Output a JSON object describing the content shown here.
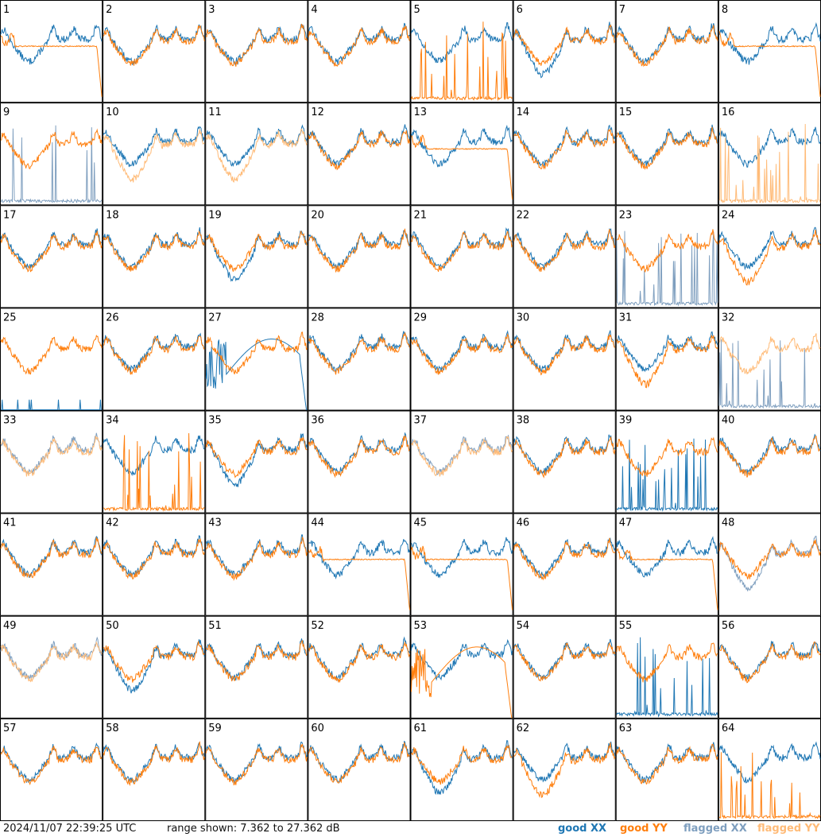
{
  "footer": {
    "timestamp": "2024/11/07 22:39:25 UTC",
    "range_text": "range shown: 7.362 to 27.362 dB",
    "legend": [
      "good XX",
      "good YY",
      "flagged XX",
      "flagged YY"
    ]
  },
  "colors": {
    "good_xx": "#1f77b4",
    "good_yy": "#ff7f0e",
    "flagged_xx": "#7f9fbf",
    "flagged_yy": "#ffbb78",
    "frame": "#000000"
  },
  "chart_data": {
    "type": "line",
    "title": "",
    "grid_rows": 8,
    "grid_cols": 8,
    "range_db": [
      7.362,
      27.362
    ],
    "series": [
      "good XX",
      "good YY",
      "flagged XX",
      "flagged YY"
    ],
    "panels": [
      {
        "label": "1",
        "xx": "good",
        "yy": "good",
        "anomaly": "yy_sag"
      },
      {
        "label": "2",
        "xx": "good",
        "yy": "good",
        "anomaly": "none"
      },
      {
        "label": "3",
        "xx": "good",
        "yy": "good",
        "anomaly": "none"
      },
      {
        "label": "4",
        "xx": "good",
        "yy": "good",
        "anomaly": "none"
      },
      {
        "label": "5",
        "xx": "good",
        "yy": "good",
        "anomaly": "yy_spikes"
      },
      {
        "label": "6",
        "xx": "good",
        "yy": "good",
        "anomaly": "xx_low"
      },
      {
        "label": "7",
        "xx": "good",
        "yy": "good",
        "anomaly": "none"
      },
      {
        "label": "8",
        "xx": "good",
        "yy": "good",
        "anomaly": "yy_sag"
      },
      {
        "label": "9",
        "xx": "flagged",
        "yy": "good",
        "anomaly": "xx_spikes"
      },
      {
        "label": "10",
        "xx": "good",
        "yy": "flagged",
        "anomaly": "yy_low"
      },
      {
        "label": "11",
        "xx": "good",
        "yy": "flagged",
        "anomaly": "yy_low"
      },
      {
        "label": "12",
        "xx": "good",
        "yy": "good",
        "anomaly": "none"
      },
      {
        "label": "13",
        "xx": "good",
        "yy": "good",
        "anomaly": "yy_sag"
      },
      {
        "label": "14",
        "xx": "good",
        "yy": "good",
        "anomaly": "none"
      },
      {
        "label": "15",
        "xx": "good",
        "yy": "good",
        "anomaly": "none"
      },
      {
        "label": "16",
        "xx": "good",
        "yy": "flagged",
        "anomaly": "yy_spikes"
      },
      {
        "label": "17",
        "xx": "good",
        "yy": "good",
        "anomaly": "none"
      },
      {
        "label": "18",
        "xx": "good",
        "yy": "good",
        "anomaly": "none"
      },
      {
        "label": "19",
        "xx": "good",
        "yy": "good",
        "anomaly": "xx_low"
      },
      {
        "label": "20",
        "xx": "good",
        "yy": "good",
        "anomaly": "none"
      },
      {
        "label": "21",
        "xx": "good",
        "yy": "good",
        "anomaly": "none"
      },
      {
        "label": "22",
        "xx": "good",
        "yy": "good",
        "anomaly": "none"
      },
      {
        "label": "23",
        "xx": "flagged",
        "yy": "good",
        "anomaly": "xx_spikes"
      },
      {
        "label": "24",
        "xx": "good",
        "yy": "good",
        "anomaly": "yy_low"
      },
      {
        "label": "25",
        "xx": "good",
        "yy": "good",
        "anomaly": "xx_gone"
      },
      {
        "label": "26",
        "xx": "good",
        "yy": "good",
        "anomaly": "none"
      },
      {
        "label": "27",
        "xx": "good",
        "yy": "good",
        "anomaly": "xx_dip"
      },
      {
        "label": "28",
        "xx": "good",
        "yy": "good",
        "anomaly": "none"
      },
      {
        "label": "29",
        "xx": "good",
        "yy": "good",
        "anomaly": "none"
      },
      {
        "label": "30",
        "xx": "good",
        "yy": "good",
        "anomaly": "none"
      },
      {
        "label": "31",
        "xx": "good",
        "yy": "good",
        "anomaly": "yy_low"
      },
      {
        "label": "32",
        "xx": "flagged",
        "yy": "flagged",
        "anomaly": "xx_spikes"
      },
      {
        "label": "33",
        "xx": "flagged",
        "yy": "flagged",
        "anomaly": "none"
      },
      {
        "label": "34",
        "xx": "good",
        "yy": "good",
        "anomaly": "yy_spikes"
      },
      {
        "label": "35",
        "xx": "good",
        "yy": "good",
        "anomaly": "xx_low"
      },
      {
        "label": "36",
        "xx": "good",
        "yy": "good",
        "anomaly": "none"
      },
      {
        "label": "37",
        "xx": "flagged",
        "yy": "flagged",
        "anomaly": "none"
      },
      {
        "label": "38",
        "xx": "good",
        "yy": "good",
        "anomaly": "none"
      },
      {
        "label": "39",
        "xx": "good",
        "yy": "good",
        "anomaly": "xx_spikes"
      },
      {
        "label": "40",
        "xx": "good",
        "yy": "good",
        "anomaly": "none"
      },
      {
        "label": "41",
        "xx": "good",
        "yy": "good",
        "anomaly": "none"
      },
      {
        "label": "42",
        "xx": "good",
        "yy": "good",
        "anomaly": "none"
      },
      {
        "label": "43",
        "xx": "good",
        "yy": "good",
        "anomaly": "none"
      },
      {
        "label": "44",
        "xx": "good",
        "yy": "good",
        "anomaly": "yy_sag"
      },
      {
        "label": "45",
        "xx": "good",
        "yy": "good",
        "anomaly": "yy_sag"
      },
      {
        "label": "46",
        "xx": "good",
        "yy": "good",
        "anomaly": "none"
      },
      {
        "label": "47",
        "xx": "good",
        "yy": "good",
        "anomaly": "yy_sag"
      },
      {
        "label": "48",
        "xx": "flagged",
        "yy": "good",
        "anomaly": "xx_low"
      },
      {
        "label": "49",
        "xx": "flagged",
        "yy": "flagged",
        "anomaly": "none"
      },
      {
        "label": "50",
        "xx": "good",
        "yy": "good",
        "anomaly": "xx_low"
      },
      {
        "label": "51",
        "xx": "good",
        "yy": "good",
        "anomaly": "none"
      },
      {
        "label": "52",
        "xx": "good",
        "yy": "good",
        "anomaly": "none"
      },
      {
        "label": "53",
        "xx": "good",
        "yy": "good",
        "anomaly": "yy_dip"
      },
      {
        "label": "54",
        "xx": "good",
        "yy": "good",
        "anomaly": "none"
      },
      {
        "label": "55",
        "xx": "good",
        "yy": "good",
        "anomaly": "xx_spikes"
      },
      {
        "label": "56",
        "xx": "good",
        "yy": "good",
        "anomaly": "none"
      },
      {
        "label": "57",
        "xx": "good",
        "yy": "good",
        "anomaly": "none"
      },
      {
        "label": "58",
        "xx": "good",
        "yy": "good",
        "anomaly": "none"
      },
      {
        "label": "59",
        "xx": "good",
        "yy": "good",
        "anomaly": "none"
      },
      {
        "label": "60",
        "xx": "good",
        "yy": "good",
        "anomaly": "none"
      },
      {
        "label": "61",
        "xx": "good",
        "yy": "good",
        "anomaly": "xx_low"
      },
      {
        "label": "62",
        "xx": "good",
        "yy": "good",
        "anomaly": "yy_low"
      },
      {
        "label": "63",
        "xx": "good",
        "yy": "good",
        "anomaly": "none"
      },
      {
        "label": "64",
        "xx": "good",
        "yy": "good",
        "anomaly": "yy_spikes"
      }
    ]
  }
}
